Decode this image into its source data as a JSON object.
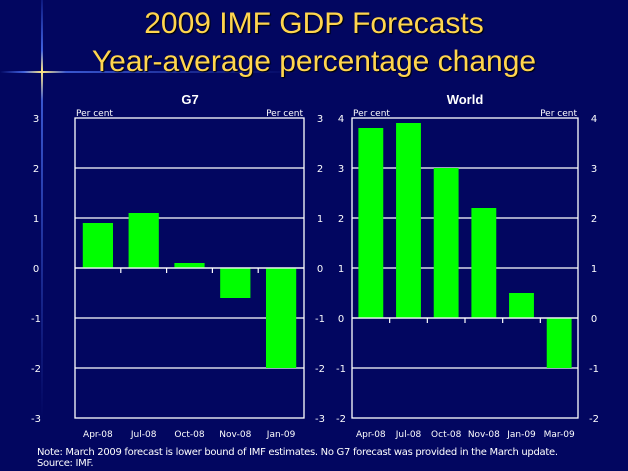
{
  "slide": {
    "title_line1": "2009 IMF GDP Forecasts",
    "title_line2": "Year-average percentage change",
    "note": "Note: March 2009 forecast is lower bound of IMF estimates.  No G7 forecast was provided in the March update.",
    "source": "Source: IMF.",
    "colors": {
      "background": "#020660",
      "title": "#ffd54f",
      "bar": "#00ff00",
      "axis": "#ffffff"
    }
  },
  "chart_data": [
    {
      "type": "bar",
      "title": "G7",
      "ylabel_left": "Per cent",
      "ylabel_right": "Per cent",
      "xlabel": "",
      "categories": [
        "Apr-08",
        "Jul-08",
        "Oct-08",
        "Nov-08",
        "Jan-09"
      ],
      "values": [
        0.9,
        1.1,
        0.1,
        -0.6,
        -2.0
      ],
      "ylim": [
        -3,
        3
      ],
      "yticks": [
        3,
        2,
        1,
        0,
        -1,
        -2,
        -3
      ],
      "grid": true,
      "legend": "none"
    },
    {
      "type": "bar",
      "title": "World",
      "ylabel_left": "Per cent",
      "ylabel_right": "Per cent",
      "xlabel": "",
      "categories": [
        "Apr-08",
        "Jul-08",
        "Oct-08",
        "Nov-08",
        "Jan-09",
        "Mar-09"
      ],
      "values": [
        3.8,
        3.9,
        3.0,
        2.2,
        0.5,
        -1.0
      ],
      "ylim": [
        -2,
        4
      ],
      "yticks": [
        4,
        3,
        2,
        1,
        0,
        -1,
        -2
      ],
      "grid": true,
      "legend": "none"
    }
  ]
}
